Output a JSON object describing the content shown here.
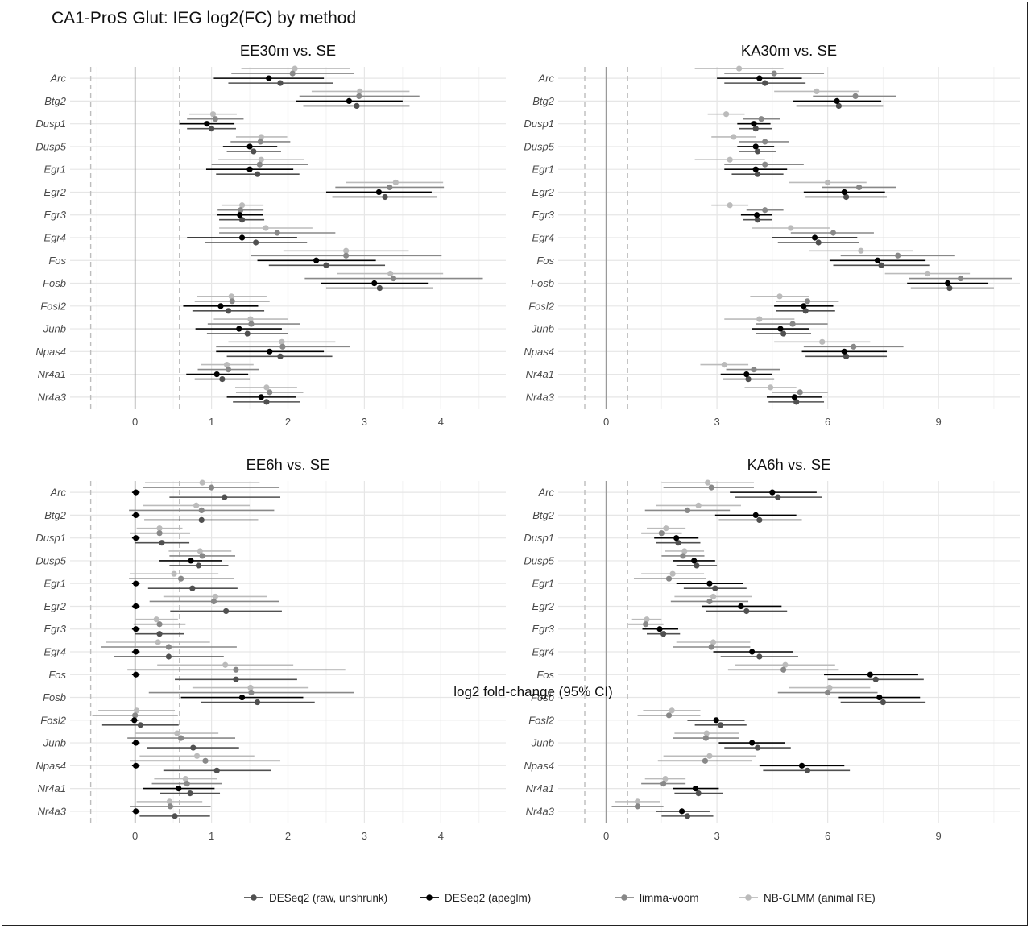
{
  "title": "CA1-ProS Glut: IEG log2(FC) by method",
  "x_axis_label": "log2 fold-change (95% CI)",
  "genes": [
    "Arc",
    "Btg2",
    "Dusp1",
    "Dusp5",
    "Egr1",
    "Egr2",
    "Egr3",
    "Egr4",
    "Fos",
    "Fosb",
    "Fosl2",
    "Junb",
    "Npas4",
    "Nr4a1",
    "Nr4a3"
  ],
  "methods": [
    {
      "name": "DESeq2 (raw, unshrunk)",
      "color": "#505050"
    },
    {
      "name": "DESeq2 (apeglm)",
      "color": "#000000"
    },
    {
      "name": "limma-voom",
      "color": "#888888"
    },
    {
      "name": "NB-GLMM (animal RE)",
      "color": "#bbbbbb"
    }
  ],
  "chart_data": [
    {
      "type": "forest",
      "title": "EE30m vs. SE",
      "xlim": [
        -0.85,
        4.85
      ],
      "xticks": [
        0,
        1,
        2,
        3,
        4
      ],
      "reference_lines": [
        0,
        -0.58,
        0.58
      ],
      "series": [
        {
          "name": "DESeq2 (raw, unshrunk)",
          "estimate": [
            1.9,
            2.9,
            1.0,
            1.55,
            1.6,
            3.27,
            1.4,
            1.58,
            2.5,
            3.2,
            1.22,
            1.47,
            1.9,
            1.14,
            1.72
          ],
          "ci_low": [
            1.22,
            2.2,
            0.68,
            1.2,
            1.06,
            2.58,
            1.1,
            0.92,
            1.75,
            2.5,
            0.75,
            0.94,
            1.2,
            0.78,
            1.28
          ],
          "ci_high": [
            2.59,
            3.59,
            1.32,
            1.91,
            2.15,
            3.95,
            1.69,
            2.25,
            3.27,
            3.9,
            1.69,
            2.0,
            2.58,
            1.5,
            2.16
          ]
        },
        {
          "name": "DESeq2 (apeglm)",
          "estimate": [
            1.75,
            2.8,
            0.94,
            1.5,
            1.5,
            3.19,
            1.37,
            1.4,
            2.37,
            3.13,
            1.12,
            1.36,
            1.76,
            1.07,
            1.65
          ],
          "ci_low": [
            1.03,
            2.11,
            0.58,
            1.15,
            0.93,
            2.5,
            1.07,
            0.68,
            1.6,
            2.43,
            0.63,
            0.79,
            1.06,
            0.67,
            1.2
          ],
          "ci_high": [
            2.47,
            3.5,
            1.3,
            1.86,
            2.07,
            3.88,
            1.67,
            2.12,
            3.15,
            3.83,
            1.61,
            1.92,
            2.47,
            1.48,
            2.1
          ]
        },
        {
          "name": "limma-voom",
          "estimate": [
            2.06,
            2.93,
            1.05,
            1.64,
            1.63,
            3.33,
            1.38,
            1.86,
            2.76,
            3.38,
            1.27,
            1.52,
            1.93,
            1.22,
            1.76
          ],
          "ci_low": [
            1.26,
            2.15,
            0.68,
            1.25,
            1.0,
            2.62,
            1.08,
            1.1,
            1.52,
            2.22,
            0.78,
            0.95,
            1.06,
            0.82,
            1.32
          ],
          "ci_high": [
            2.86,
            3.72,
            1.42,
            2.03,
            2.26,
            4.04,
            1.68,
            2.62,
            4.01,
            4.55,
            1.76,
            2.16,
            2.81,
            1.62,
            2.2
          ]
        },
        {
          "name": "NB-GLMM (animal RE)",
          "estimate": [
            2.09,
            2.94,
            1.02,
            1.65,
            1.65,
            3.41,
            1.4,
            1.71,
            2.76,
            3.34,
            1.26,
            1.51,
            1.92,
            1.2,
            1.72
          ],
          "ci_low": [
            1.39,
            2.31,
            0.71,
            1.32,
            1.09,
            2.76,
            1.13,
            1.1,
            1.94,
            2.64,
            0.81,
            1.03,
            1.22,
            0.86,
            1.31
          ],
          "ci_high": [
            2.81,
            3.59,
            1.33,
            1.99,
            2.21,
            4.03,
            1.68,
            2.32,
            3.58,
            4.03,
            1.72,
            2.0,
            2.62,
            1.55,
            2.12
          ]
        }
      ]
    },
    {
      "type": "forest",
      "title": "KA30m vs. SE",
      "xlim": [
        -1.3,
        11.2
      ],
      "xticks": [
        0,
        3,
        6,
        9
      ],
      "reference_lines": [
        0,
        -0.58,
        0.58
      ],
      "series": [
        {
          "name": "DESeq2 (raw, unshrunk)",
          "estimate": [
            4.3,
            6.3,
            4.05,
            4.1,
            4.1,
            6.5,
            4.1,
            5.75,
            7.45,
            9.3,
            5.4,
            4.8,
            6.5,
            3.85,
            5.15
          ],
          "ci_low": [
            3.2,
            5.15,
            3.6,
            3.6,
            3.4,
            5.4,
            3.7,
            4.65,
            6.15,
            8.25,
            4.6,
            4.05,
            5.4,
            3.15,
            4.4
          ],
          "ci_high": [
            5.4,
            7.5,
            4.5,
            4.6,
            4.8,
            7.6,
            4.5,
            6.85,
            8.75,
            10.5,
            6.2,
            5.55,
            7.6,
            4.55,
            5.9
          ]
        },
        {
          "name": "DESeq2 (apeglm)",
          "estimate": [
            4.15,
            6.25,
            4.0,
            4.05,
            4.05,
            6.45,
            4.08,
            5.65,
            7.35,
            9.25,
            5.35,
            4.72,
            6.45,
            3.8,
            5.1
          ],
          "ci_low": [
            3.0,
            5.05,
            3.55,
            3.55,
            3.2,
            5.35,
            3.65,
            4.5,
            6.05,
            8.15,
            4.55,
            3.95,
            5.3,
            3.1,
            4.35
          ],
          "ci_high": [
            5.3,
            7.45,
            4.45,
            4.55,
            4.9,
            7.55,
            4.5,
            6.8,
            8.65,
            10.35,
            6.15,
            5.5,
            7.6,
            4.5,
            5.85
          ]
        },
        {
          "name": "limma-voom",
          "estimate": [
            4.55,
            6.75,
            4.2,
            4.3,
            4.3,
            6.85,
            4.3,
            6.15,
            7.9,
            9.6,
            5.45,
            5.05,
            6.7,
            4.0,
            5.25
          ],
          "ci_low": [
            3.2,
            5.6,
            3.7,
            3.6,
            3.2,
            5.85,
            3.8,
            5.0,
            6.35,
            8.2,
            4.6,
            4.05,
            5.35,
            3.25,
            4.5
          ],
          "ci_high": [
            5.9,
            7.85,
            4.7,
            4.95,
            5.35,
            7.85,
            4.8,
            7.25,
            9.45,
            11.0,
            6.3,
            6.0,
            8.05,
            4.7,
            6.0
          ]
        },
        {
          "name": "NB-GLMM (animal RE)",
          "estimate": [
            3.6,
            5.7,
            3.25,
            3.45,
            3.35,
            6.0,
            3.35,
            5.0,
            6.9,
            8.7,
            4.7,
            4.15,
            5.85,
            3.2,
            4.45
          ],
          "ci_low": [
            2.4,
            4.55,
            2.75,
            2.85,
            2.4,
            4.95,
            2.85,
            3.95,
            5.5,
            7.55,
            3.9,
            3.2,
            4.55,
            2.55,
            3.75
          ],
          "ci_high": [
            4.8,
            6.85,
            3.75,
            4.05,
            4.3,
            7.05,
            3.85,
            6.05,
            8.3,
            9.85,
            5.5,
            5.1,
            7.15,
            3.85,
            5.15
          ]
        }
      ]
    },
    {
      "type": "forest",
      "title": "EE6h vs. SE",
      "xlim": [
        -0.85,
        4.85
      ],
      "xticks": [
        0,
        1,
        2,
        3,
        4
      ],
      "reference_lines": [
        0,
        -0.58,
        0.58
      ],
      "series": [
        {
          "name": "DESeq2 (raw, unshrunk)",
          "estimate": [
            1.17,
            0.87,
            0.35,
            0.83,
            0.75,
            1.19,
            0.32,
            0.44,
            1.32,
            1.6,
            0.07,
            0.76,
            1.07,
            0.72,
            0.52
          ],
          "ci_low": [
            0.45,
            0.12,
            0.0,
            0.45,
            0.17,
            0.46,
            0.0,
            -0.28,
            0.52,
            0.86,
            -0.43,
            0.16,
            0.37,
            0.33,
            0.06
          ],
          "ci_high": [
            1.9,
            1.61,
            0.71,
            1.22,
            1.34,
            1.92,
            0.64,
            1.16,
            2.12,
            2.35,
            0.57,
            1.36,
            1.78,
            1.11,
            0.98
          ]
        },
        {
          "name": "DESeq2 (apeglm)",
          "estimate": [
            0.01,
            0.01,
            0.01,
            0.73,
            0.01,
            0.01,
            0.01,
            0.01,
            0.01,
            1.4,
            -0.01,
            0.01,
            0.01,
            0.57,
            0.01
          ],
          "ci_low": [
            -0.04,
            -0.04,
            -0.04,
            0.32,
            -0.04,
            -0.04,
            -0.04,
            -0.04,
            -0.04,
            0.6,
            -0.06,
            -0.04,
            -0.04,
            0.1,
            -0.04
          ],
          "ci_high": [
            0.06,
            0.06,
            0.06,
            1.14,
            0.06,
            0.06,
            0.06,
            0.06,
            0.06,
            2.2,
            0.04,
            0.06,
            0.06,
            1.04,
            0.06
          ]
        },
        {
          "name": "limma-voom",
          "estimate": [
            1.0,
            0.87,
            0.32,
            0.88,
            0.6,
            1.03,
            0.32,
            0.44,
            1.32,
            1.52,
            0.0,
            0.6,
            0.92,
            0.68,
            0.46
          ],
          "ci_low": [
            0.1,
            -0.08,
            -0.07,
            0.45,
            -0.08,
            0.19,
            -0.02,
            -0.44,
            -0.1,
            0.18,
            -0.56,
            -0.1,
            -0.06,
            0.22,
            -0.07
          ],
          "ci_high": [
            1.89,
            1.82,
            0.72,
            1.31,
            1.29,
            1.88,
            0.66,
            1.33,
            2.75,
            2.86,
            0.56,
            1.31,
            1.9,
            1.14,
            0.99
          ]
        },
        {
          "name": "NB-GLMM (animal RE)",
          "estimate": [
            0.88,
            0.8,
            0.32,
            0.85,
            0.51,
            1.05,
            0.28,
            0.3,
            1.18,
            1.51,
            0.02,
            0.55,
            0.81,
            0.66,
            0.45
          ],
          "ci_low": [
            0.13,
            0.1,
            0.02,
            0.44,
            -0.07,
            0.37,
            0.0,
            -0.38,
            0.29,
            0.75,
            -0.48,
            0.01,
            0.06,
            0.25,
            0.02
          ],
          "ci_high": [
            1.63,
            1.5,
            0.62,
            1.26,
            1.09,
            1.73,
            0.56,
            0.98,
            2.07,
            2.27,
            0.52,
            1.09,
            1.56,
            1.07,
            0.88
          ]
        }
      ]
    },
    {
      "type": "forest",
      "title": "KA6h vs. SE",
      "xlim": [
        -1.3,
        11.2
      ],
      "xticks": [
        0,
        3,
        6,
        9
      ],
      "reference_lines": [
        0,
        -0.58,
        0.58
      ],
      "series": [
        {
          "name": "DESeq2 (raw, unshrunk)",
          "estimate": [
            4.65,
            4.15,
            1.95,
            2.45,
            2.95,
            3.8,
            1.55,
            4.15,
            7.3,
            7.5,
            3.1,
            4.1,
            5.45,
            2.5,
            2.2
          ],
          "ci_low": [
            3.5,
            3.05,
            1.35,
            1.9,
            2.1,
            2.7,
            1.1,
            3.1,
            6.0,
            6.35,
            2.4,
            3.2,
            4.25,
            1.85,
            1.5
          ],
          "ci_high": [
            5.85,
            5.3,
            2.55,
            3.0,
            3.8,
            4.9,
            2.0,
            5.2,
            8.6,
            8.65,
            3.8,
            5.0,
            6.6,
            3.15,
            2.9
          ]
        },
        {
          "name": "DESeq2 (apeglm)",
          "estimate": [
            4.5,
            4.05,
            1.9,
            2.38,
            2.8,
            3.65,
            1.45,
            3.95,
            7.15,
            7.4,
            2.98,
            3.95,
            5.3,
            2.42,
            2.05
          ],
          "ci_low": [
            3.35,
            2.95,
            1.3,
            1.8,
            1.9,
            2.6,
            0.98,
            2.9,
            5.9,
            6.3,
            2.2,
            3.05,
            4.15,
            1.8,
            1.35
          ],
          "ci_high": [
            5.7,
            5.15,
            2.5,
            2.95,
            3.7,
            4.75,
            1.95,
            5.05,
            8.45,
            8.5,
            3.75,
            4.85,
            6.45,
            3.05,
            2.8
          ]
        },
        {
          "name": "limma-voom",
          "estimate": [
            2.85,
            2.2,
            1.5,
            2.08,
            1.7,
            2.8,
            1.07,
            2.85,
            4.8,
            6.0,
            1.7,
            2.7,
            2.68,
            1.55,
            0.85
          ],
          "ci_low": [
            1.55,
            1.05,
            0.95,
            1.5,
            0.75,
            1.75,
            0.6,
            1.8,
            3.3,
            4.65,
            0.85,
            1.8,
            1.4,
            0.95,
            0.15
          ],
          "ci_high": [
            4.0,
            3.35,
            2.05,
            2.66,
            2.7,
            3.85,
            1.55,
            3.9,
            6.3,
            7.35,
            2.55,
            3.6,
            3.95,
            2.15,
            1.55
          ]
        },
        {
          "name": "NB-GLMM (animal RE)",
          "estimate": [
            2.75,
            2.5,
            1.62,
            2.12,
            1.8,
            2.9,
            1.1,
            2.9,
            4.85,
            6.05,
            1.78,
            2.72,
            2.8,
            1.6,
            0.85
          ],
          "ci_low": [
            1.5,
            1.35,
            1.1,
            1.6,
            0.95,
            1.85,
            0.7,
            1.9,
            3.5,
            4.95,
            1.0,
            1.85,
            1.55,
            1.05,
            0.25
          ],
          "ci_high": [
            4.0,
            3.65,
            2.15,
            2.65,
            2.65,
            3.95,
            1.5,
            3.9,
            6.2,
            7.15,
            2.55,
            3.6,
            4.05,
            2.15,
            1.45
          ]
        }
      ]
    }
  ]
}
